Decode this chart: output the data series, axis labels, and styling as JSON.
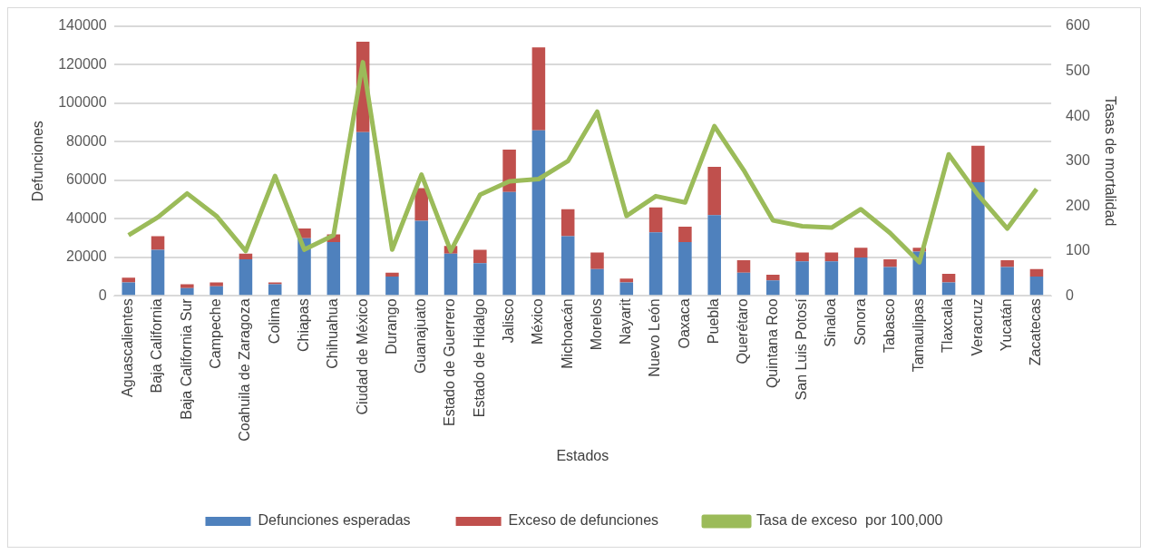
{
  "chart_data": {
    "type": "bar",
    "stacked": true,
    "xlabel": "Estados",
    "ylabel": "Defunciones",
    "y2label": "Tasas de mortalidad",
    "categories": [
      "Aguascalientes",
      "Baja California",
      "Baja California Sur",
      "Campeche",
      "Coahuila de Zaragoza",
      "Colima",
      "Chiapas",
      "Chihuahua",
      "Ciudad de México",
      "Durango",
      "Guanajuato",
      "Estado de Guerrero",
      "Estado de Hidalgo",
      "Jalisco",
      "México",
      "Michoacán",
      "Morelos",
      "Nayarit",
      "Nuevo León",
      "Oaxaca",
      "Puebla",
      "Querétaro",
      "Quintana Roo",
      "San Luis Potosí",
      "Sinaloa",
      "Sonora",
      "Tabasco",
      "Tamaulipas",
      "Tlaxcala",
      "Veracruz",
      "Yucatán",
      "Zacatecas"
    ],
    "series": [
      {
        "name": "Defunciones esperadas",
        "color": "#4f81bd",
        "values": [
          7000,
          24000,
          4000,
          5000,
          19000,
          6000,
          30000,
          28000,
          85000,
          10000,
          39000,
          22000,
          17000,
          54000,
          86000,
          31000,
          14000,
          7000,
          33000,
          28000,
          42000,
          12000,
          8000,
          18000,
          18000,
          20000,
          15000,
          23000,
          7000,
          59000,
          15000,
          10000
        ]
      },
      {
        "name": "Exceso de defunciones",
        "color": "#c0504d",
        "values": [
          2500,
          7000,
          2000,
          2000,
          3000,
          1000,
          5000,
          4000,
          47000,
          2000,
          17000,
          4000,
          7000,
          22000,
          43000,
          14000,
          8500,
          2000,
          13000,
          8000,
          25000,
          6500,
          3000,
          4500,
          4500,
          5000,
          4000,
          2000,
          4500,
          19000,
          3500,
          4000
        ]
      },
      {
        "name": "Tasa de exceso  por 100,000",
        "type": "line",
        "axis": "y2",
        "color": "#9bbb59",
        "values": [
          135,
          175,
          228,
          178,
          100,
          267,
          103,
          135,
          520,
          103,
          270,
          100,
          225,
          255,
          260,
          300,
          410,
          178,
          222,
          208,
          378,
          280,
          168,
          155,
          152,
          193,
          140,
          75,
          315,
          225,
          150,
          238
        ]
      }
    ],
    "ylim": [
      0,
      140000
    ],
    "yticks": [
      0,
      20000,
      40000,
      60000,
      80000,
      100000,
      120000,
      140000
    ],
    "y2lim": [
      0,
      600
    ],
    "y2ticks": [
      0,
      100,
      200,
      300,
      400,
      500,
      600
    ],
    "grid": "y",
    "legend": "bottom",
    "marker": "none",
    "line_style": "solid"
  }
}
